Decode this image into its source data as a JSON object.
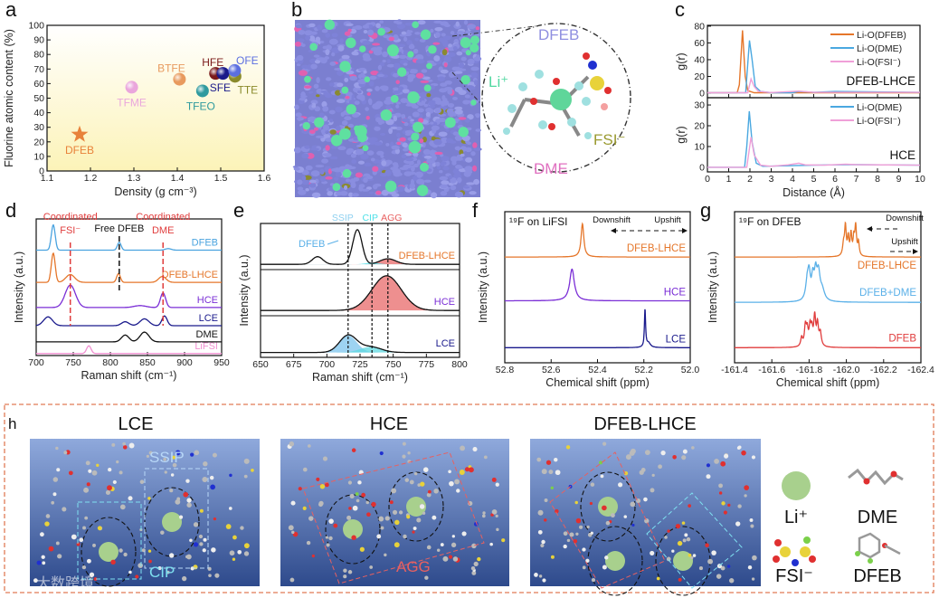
{
  "panel_letters": {
    "a": "a",
    "b": "b",
    "c": "c",
    "d": "d",
    "e": "e",
    "f": "f",
    "g": "g",
    "h": "h"
  },
  "panel_b": {
    "labels": {
      "dfeb": "DFEB",
      "li": "Li⁺",
      "fsi": "FSI⁻",
      "dme": "DME"
    }
  },
  "panel_h": {
    "titles": [
      "LCE",
      "HCE",
      "DFEB-LHCE"
    ],
    "annotations": {
      "ssip": "SSIP",
      "cip": "CIP",
      "agg": "AGG"
    },
    "legend": {
      "li": "Li⁺",
      "dme": "DME",
      "fsi": "FSI⁻",
      "dfeb": "DFEB"
    },
    "colors": {
      "li": "#a8d08d",
      "box_top": "#8fa9dc",
      "box_bottom": "#2e4a8c",
      "border": "#e07b56"
    }
  },
  "watermark": "大数跨境",
  "chart_data": [
    {
      "id": "a",
      "type": "scatter",
      "xlabel": "Density (g cm⁻³)",
      "ylabel": "Fluorine atomic content (%)",
      "xlim": [
        1.1,
        1.6
      ],
      "ylim": [
        0,
        100
      ],
      "xticks": [
        "1.1",
        "1.2",
        "1.3",
        "1.4",
        "1.5",
        "1.6"
      ],
      "yticks": [
        "0",
        "10",
        "20",
        "30",
        "40",
        "50",
        "60",
        "70",
        "80",
        "90",
        "100"
      ],
      "points": [
        {
          "label": "DFEB",
          "x": 1.175,
          "y": 25,
          "color": "#e8823a",
          "marker": "star"
        },
        {
          "label": "TFME",
          "x": 1.295,
          "y": 57.5,
          "color": "#eaa6dc",
          "marker": "sphere"
        },
        {
          "label": "BTFE",
          "x": 1.405,
          "y": 63,
          "color": "#e89a5e",
          "marker": "sphere"
        },
        {
          "label": "TFEO",
          "x": 1.458,
          "y": 55,
          "color": "#2f9a9e",
          "marker": "sphere"
        },
        {
          "label": "TTE",
          "x": 1.533,
          "y": 65,
          "color": "#8a8a2a",
          "marker": "sphere"
        },
        {
          "label": "HFE",
          "x": 1.488,
          "y": 67,
          "color": "#7a1a1a",
          "marker": "sphere"
        },
        {
          "label": "SFE",
          "x": 1.505,
          "y": 67,
          "color": "#1a1a8a",
          "marker": "sphere"
        },
        {
          "label": "OFE",
          "x": 1.532,
          "y": 69,
          "color": "#5b6fe0",
          "marker": "sphere"
        }
      ]
    },
    {
      "id": "c-top",
      "type": "line",
      "xlim": [
        0,
        10
      ],
      "ylim": [
        -5.4,
        81
      ],
      "ylabel": "g(r)",
      "yticks": [
        "0",
        "20",
        "40",
        "60",
        "80"
      ],
      "annotation": "DFEB-LHCE",
      "series": [
        {
          "name": "Li-O(DFEB)",
          "color": "#e5762a",
          "points": [
            [
              0,
              0.5
            ],
            [
              1.4,
              0.5
            ],
            [
              1.5,
              10
            ],
            [
              1.65,
              75
            ],
            [
              1.78,
              20
            ],
            [
              1.9,
              3
            ],
            [
              2.2,
              0.5
            ],
            [
              10,
              0.5
            ]
          ]
        },
        {
          "name": "Li-O(DME)",
          "color": "#4aa8e0",
          "points": [
            [
              0,
              0.5
            ],
            [
              1.8,
              0.5
            ],
            [
              1.9,
              35
            ],
            [
              1.98,
              63
            ],
            [
              2.1,
              40
            ],
            [
              2.25,
              8
            ],
            [
              2.5,
              2
            ],
            [
              3,
              0.5
            ],
            [
              4,
              0.5
            ],
            [
              4.3,
              2
            ],
            [
              5,
              1
            ],
            [
              6,
              2
            ],
            [
              10,
              1
            ]
          ]
        },
        {
          "name": "Li-O(FSI⁻)",
          "color": "#f0a0d8",
          "points": [
            [
              0,
              0.5
            ],
            [
              1.9,
              0.5
            ],
            [
              2.05,
              17
            ],
            [
              2.2,
              8
            ],
            [
              2.4,
              2
            ],
            [
              3,
              0.8
            ],
            [
              4.3,
              2.5
            ],
            [
              5,
              1
            ],
            [
              10,
              1
            ]
          ]
        }
      ]
    },
    {
      "id": "c-bottom",
      "type": "line",
      "xlim": [
        0,
        10
      ],
      "ylim": [
        -2.2,
        33.5
      ],
      "xlabel": "Distance (Å)",
      "ylabel": "g(r)",
      "xticks": [
        "0",
        "1",
        "2",
        "3",
        "4",
        "5",
        "6",
        "7",
        "8",
        "9",
        "10"
      ],
      "yticks": [
        "0",
        "10",
        "20",
        "30"
      ],
      "annotation": "HCE",
      "series": [
        {
          "name": "Li-O(DME)",
          "color": "#4aa8e0",
          "points": [
            [
              0,
              0
            ],
            [
              1.75,
              0
            ],
            [
              1.85,
              10
            ],
            [
              1.97,
              27
            ],
            [
              2.1,
              12
            ],
            [
              2.3,
              2
            ],
            [
              2.6,
              0.5
            ],
            [
              4,
              0.8
            ],
            [
              5,
              1
            ],
            [
              6,
              1.2
            ],
            [
              7,
              1.3
            ],
            [
              10,
              1
            ]
          ]
        },
        {
          "name": "Li-O(FSI⁻)",
          "color": "#f0a0d8",
          "points": [
            [
              0,
              0
            ],
            [
              1.85,
              0
            ],
            [
              2.05,
              14.5
            ],
            [
              2.2,
              6
            ],
            [
              2.5,
              1
            ],
            [
              3,
              0.5
            ],
            [
              3.8,
              1.2
            ],
            [
              4.3,
              2
            ],
            [
              4.6,
              1.2
            ],
            [
              5.5,
              1
            ],
            [
              6.5,
              1.5
            ],
            [
              7,
              1.3
            ],
            [
              10,
              1
            ]
          ]
        }
      ]
    },
    {
      "id": "d",
      "type": "line",
      "shape": "gauss",
      "xlabel": "Raman shift (cm⁻¹)",
      "ylabel": "Intensity (a.u.)",
      "xlim": [
        700,
        950
      ],
      "ylim": [
        0,
        7
      ],
      "xticks": [
        "700",
        "750",
        "800",
        "850",
        "900",
        "950"
      ],
      "markers": [
        {
          "x": 746,
          "color": "#e03c3c",
          "label": "Coordinated",
          "label2": "FSI⁻"
        },
        {
          "x": 812,
          "color": "#111111",
          "label": "Free DFEB",
          "label2": ""
        },
        {
          "x": 871,
          "color": "#e03c3c",
          "label": "Coordinated",
          "label2": "DME"
        }
      ],
      "series": [
        {
          "name": "DFEB",
          "color": "#4aa3df",
          "offset": 5.4,
          "peaks": [
            [
              723,
              1.3,
              2.6
            ],
            [
              812,
              0.4,
              2.5
            ],
            [
              878,
              0.08,
              4
            ]
          ]
        },
        {
          "name": "DFEB-LHCE",
          "color": "#e5762a",
          "offset": 3.75,
          "peaks": [
            [
              723,
              1.5,
              2.6
            ],
            [
              746,
              0.4,
              6
            ],
            [
              811,
              0.45,
              2.5
            ],
            [
              870,
              0.3,
              5
            ]
          ]
        },
        {
          "name": "HCE",
          "color": "#7b2fd6",
          "offset": 2.46,
          "peaks": [
            [
              746,
              1.15,
              7
            ],
            [
              871,
              0.75,
              3.5
            ],
            [
              840,
              0.1,
              8
            ]
          ]
        },
        {
          "name": "LCE",
          "color": "#1a1a8c",
          "offset": 1.53,
          "peaks": [
            [
              716,
              0.45,
              6
            ],
            [
              820,
              0.2,
              5
            ],
            [
              846,
              0.35,
              6
            ],
            [
              873,
              0.5,
              3.5
            ]
          ]
        },
        {
          "name": "DME",
          "color": "#111111",
          "offset": 0.7,
          "peaks": [
            [
              820,
              0.35,
              5
            ],
            [
              846,
              0.5,
              6
            ]
          ]
        },
        {
          "name": "LiFSI",
          "color": "#f08fd0",
          "offset": 0.1,
          "peaks": [
            [
              771,
              0.4,
              3
            ]
          ]
        }
      ]
    },
    {
      "id": "e",
      "type": "line",
      "shape": "gauss",
      "xlabel": "Raman shift (cm⁻¹)",
      "ylabel": "Intensity (a.u.)",
      "xlim": [
        650,
        800
      ],
      "xticks": [
        "650",
        "675",
        "700",
        "725",
        "750",
        "775",
        "800"
      ],
      "markers": [
        {
          "x": 716,
          "label": "SSIP",
          "color": "#8fd0f0"
        },
        {
          "x": 734,
          "label": "CIP",
          "color": "#4ee0e8"
        },
        {
          "x": 746,
          "label": "AGG",
          "color": "#e86060"
        }
      ],
      "peak_annotation": "DFEB",
      "panels": [
        {
          "label": "DFEB-LHCE",
          "color": "#e5762a",
          "ylim": [
            -0.1,
            1.1
          ],
          "peaks": [
            [
              693,
              0.22,
              4
            ],
            [
              723,
              1.0,
              3.5
            ],
            [
              746,
              0.16,
              6
            ]
          ],
          "components": [
            {
              "name": "AGG",
              "color": "#e86a6a",
              "peaks": [
                [
                  746,
                  0.16,
                  6
                ]
              ]
            },
            {
              "name": "CIP",
              "color": "#4ee0e8",
              "peaks": [
                [
                  734,
                  0.05,
                  5
                ]
              ]
            }
          ]
        },
        {
          "label": "HCE",
          "color": "#7b2fd6",
          "ylim": [
            -0.1,
            1.1
          ],
          "peaks": [
            [
              745,
              1.0,
              11
            ]
          ],
          "components": [
            {
              "name": "AGG",
              "color": "#e86a6a",
              "peaks": [
                [
                  745,
                  1.0,
                  11
                ]
              ]
            }
          ]
        },
        {
          "label": "LCE",
          "color": "#1a1a8c",
          "ylim": [
            -0.1,
            1.1
          ],
          "peaks": [
            [
              716,
              0.55,
              6.5
            ],
            [
              733,
              0.18,
              8
            ]
          ],
          "components": [
            {
              "name": "SSIP",
              "color": "#7cc4ee",
              "peaks": [
                [
                  716,
                  0.55,
                  6.5
                ]
              ]
            },
            {
              "name": "CIP",
              "color": "#5ed8e0",
              "peaks": [
                [
                  733,
                  0.18,
                  8
                ]
              ]
            }
          ]
        }
      ]
    },
    {
      "id": "f",
      "type": "line",
      "shape": "lorentz",
      "title": "¹⁹F on LiFSI",
      "xlabel": "Chemical shift (ppm)",
      "ylabel": "Intensity (a.u.)",
      "xlim": [
        52.8,
        52.0
      ],
      "ylim": [
        0,
        10
      ],
      "xticks": [
        "52.8",
        "52.6",
        "52.4",
        "52.2",
        "52.0"
      ],
      "arrows": {
        "down": "Downshift",
        "up": "Upshift"
      },
      "series": [
        {
          "name": "DFEB-LHCE",
          "color": "#e5762a",
          "offset": 7.0,
          "peaks": [
            [
              52.465,
              2.2,
              0.007
            ]
          ]
        },
        {
          "name": "HCE",
          "color": "#7b2fd6",
          "offset": 4.1,
          "peaks": [
            [
              52.51,
              2.1,
              0.012
            ]
          ]
        },
        {
          "name": "LCE",
          "color": "#1a1a8c",
          "offset": 1.0,
          "peaks": [
            [
              52.195,
              2.5,
              0.003
            ],
            [
              52.18,
              0.3,
              0.01
            ]
          ]
        }
      ]
    },
    {
      "id": "g",
      "type": "line",
      "shape": "lorentz",
      "title": "¹⁹F on DFEB",
      "xlabel": "Chemical shift (ppm)",
      "ylabel": "Intensity (a.u.)",
      "xlim": [
        -161.4,
        -162.4
      ],
      "ylim": [
        0,
        10
      ],
      "xticks": [
        "-161.4",
        "-161.6",
        "-161.8",
        "-162.0",
        "-162.2",
        "-162.4"
      ],
      "arrows": {
        "down": "Downshift",
        "up": "Upshift"
      },
      "series": [
        {
          "name": "DFEB-LHCE",
          "color": "#e5762a",
          "offset": 7.0,
          "peaks": [
            [
              -161.985,
              0.8,
              0.006
            ],
            [
              -161.995,
              1.9,
              0.005
            ],
            [
              -162.01,
              1.2,
              0.005
            ],
            [
              -162.025,
              1.4,
              0.005
            ],
            [
              -162.04,
              1.1,
              0.005
            ],
            [
              -162.05,
              1.9,
              0.005
            ],
            [
              -162.065,
              0.9,
              0.005
            ]
          ]
        },
        {
          "name": "DFEB+DME",
          "color": "#5ab0e8",
          "offset": 4.0,
          "peaks": [
            [
              -161.79,
              1.2,
              0.01
            ],
            [
              -161.8,
              1.5,
              0.008
            ],
            [
              -161.82,
              1.4,
              0.008
            ],
            [
              -161.835,
              1.6,
              0.008
            ],
            [
              -161.85,
              1.7,
              0.01
            ],
            [
              -161.87,
              0.7,
              0.015
            ]
          ]
        },
        {
          "name": "DFEB",
          "color": "#e03c3c",
          "offset": 1.0,
          "peaks": [
            [
              -161.76,
              0.6,
              0.006
            ],
            [
              -161.78,
              1.3,
              0.006
            ],
            [
              -161.79,
              1.0,
              0.006
            ],
            [
              -161.805,
              1.2,
              0.006
            ],
            [
              -161.815,
              1.0,
              0.006
            ],
            [
              -161.83,
              1.9,
              0.006
            ],
            [
              -161.845,
              1.4,
              0.006
            ],
            [
              -161.86,
              0.9,
              0.007
            ]
          ]
        }
      ]
    }
  ]
}
